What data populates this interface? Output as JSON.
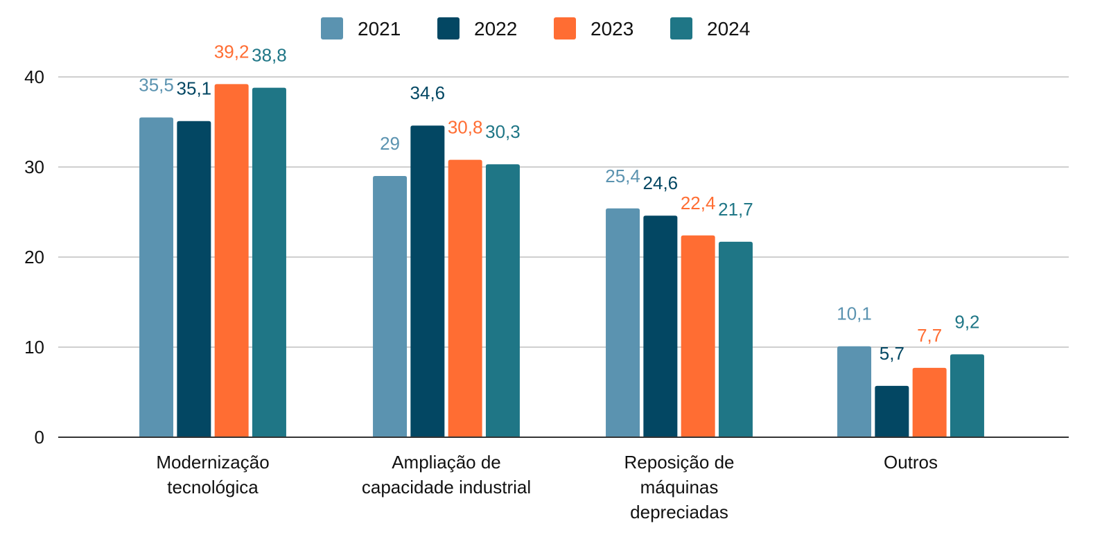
{
  "chart_data": {
    "type": "bar",
    "categories": [
      [
        "Modernização",
        "tecnológica"
      ],
      [
        "Ampliação de",
        "capacidade industrial"
      ],
      [
        "Reposição de",
        "máquinas",
        "depreciadas"
      ],
      [
        "Outros"
      ]
    ],
    "series": [
      {
        "name": "2021",
        "color": "#5b93b0",
        "values": [
          35.5,
          29,
          25.4,
          10.1
        ],
        "labels": [
          "35,5",
          "29",
          "25,4",
          "10,1"
        ]
      },
      {
        "name": "2022",
        "color": "#034763",
        "values": [
          35.1,
          34.6,
          24.6,
          5.7
        ],
        "labels": [
          "35,1",
          "34,6",
          "24,6",
          "5,7"
        ]
      },
      {
        "name": "2023",
        "color": "#ff6d33",
        "values": [
          39.2,
          30.8,
          22.4,
          7.7
        ],
        "labels": [
          "39,2",
          "30,8",
          "22,4",
          "7,7"
        ]
      },
      {
        "name": "2024",
        "color": "#1f7686",
        "values": [
          38.8,
          30.3,
          21.7,
          9.2
        ],
        "labels": [
          "38,8",
          "30,3",
          "21,7",
          "9,2"
        ]
      }
    ],
    "y_ticks": [
      "0",
      "10",
      "20",
      "30",
      "40"
    ],
    "ylim": [
      0,
      40
    ],
    "grid": true,
    "legend_position": "top-center",
    "title": "",
    "xlabel": "",
    "ylabel": ""
  }
}
